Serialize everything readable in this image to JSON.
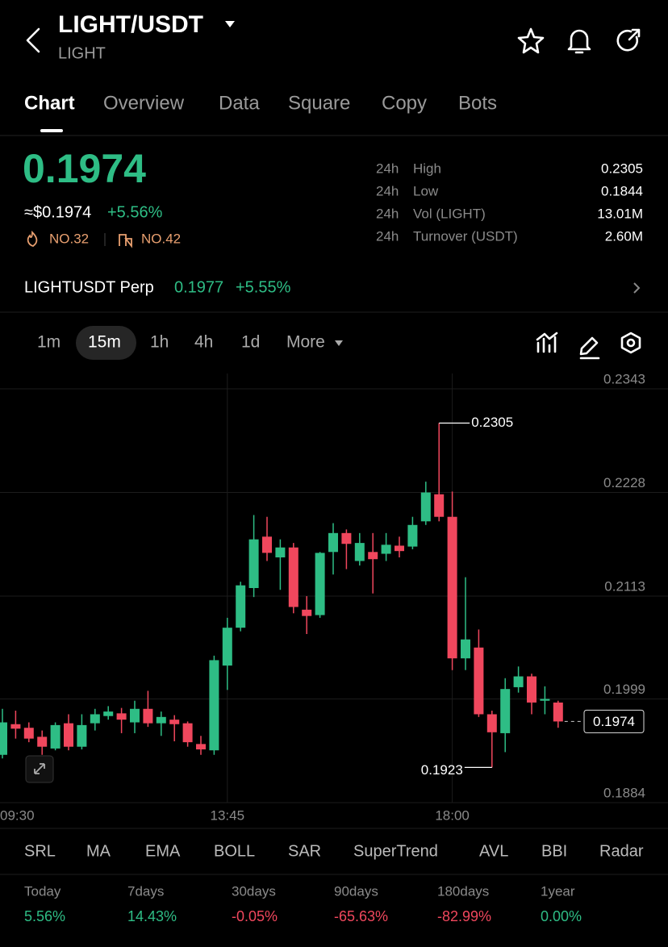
{
  "header": {
    "title": "LIGHT/USDT",
    "subtitle": "LIGHT"
  },
  "tabs": [
    "Chart",
    "Overview",
    "Data",
    "Square",
    "Copy",
    "Bots"
  ],
  "price": {
    "last": "0.1974",
    "usd": "≈$0.1974",
    "change": "+5.56%",
    "rank_hot": "NO.32",
    "rank_sector": "NO.42"
  },
  "stats": [
    [
      "24h",
      "High",
      "0.2305"
    ],
    [
      "24h",
      "Low",
      "0.1844"
    ],
    [
      "24h",
      "Vol (LIGHT)",
      "13.01M"
    ],
    [
      "24h",
      "Turnover (USDT)",
      "2.60M"
    ]
  ],
  "perp": {
    "name": "LIGHTUSDT Perp",
    "price": "0.1977",
    "change": "+5.55%"
  },
  "intervals": [
    "1m",
    "15m",
    "1h",
    "4h",
    "1d",
    "More"
  ],
  "chart_data": {
    "type": "candlestick",
    "categories": [
      "09:30",
      null,
      null,
      null,
      null,
      null,
      null,
      null,
      null,
      null,
      null,
      null,
      null,
      null,
      null,
      null,
      null,
      "13:45",
      null,
      null,
      null,
      null,
      null,
      null,
      null,
      null,
      null,
      null,
      null,
      null,
      null,
      null,
      null,
      null,
      "18:00",
      null,
      null,
      null,
      null,
      null,
      null,
      null,
      null
    ],
    "open": [
      0.1937,
      0.1971,
      0.1967,
      0.1957,
      0.1944,
      0.1972,
      0.1946,
      0.1972,
      0.198,
      0.1983,
      0.1973,
      0.1988,
      0.1972,
      0.1976,
      0.1972,
      0.1949,
      0.1942,
      0.2036,
      0.2078,
      0.2122,
      0.2179,
      0.2156,
      0.2167,
      0.2098,
      0.2092,
      0.2162,
      0.2183,
      0.2152,
      0.2162,
      0.216,
      0.2169,
      0.2168,
      0.2196,
      0.2226,
      0.2201,
      0.2044,
      0.2056,
      0.1982,
      0.1961,
      0.2012,
      0.2024,
      0.1997,
      0.1995
    ],
    "high": [
      0.1988,
      0.1986,
      0.1973,
      0.1964,
      0.1973,
      0.1982,
      0.1982,
      0.1988,
      0.1991,
      0.1989,
      0.1997,
      0.2008,
      0.1985,
      0.1981,
      0.1974,
      0.1958,
      0.2047,
      0.2089,
      0.2129,
      0.2203,
      0.2201,
      0.2176,
      0.2172,
      0.2113,
      0.2162,
      0.2194,
      0.2187,
      0.2183,
      0.2183,
      0.2183,
      0.2179,
      0.2201,
      0.224,
      0.2305,
      0.2229,
      0.2134,
      0.2076,
      0.1986,
      0.2022,
      0.2035,
      0.2027,
      0.2013,
      0.1997
    ],
    "low": [
      0.1933,
      0.1955,
      0.1951,
      0.1937,
      0.1942,
      0.1942,
      0.1943,
      0.1964,
      0.1976,
      0.1961,
      0.1961,
      0.1968,
      0.1958,
      0.1952,
      0.1946,
      0.1937,
      0.1937,
      0.2009,
      0.2074,
      0.2112,
      0.2152,
      0.212,
      0.2094,
      0.2071,
      0.2089,
      0.2137,
      0.2143,
      0.2147,
      0.2116,
      0.2152,
      0.2156,
      0.2165,
      0.2192,
      0.2196,
      0.2031,
      0.2031,
      0.1979,
      0.1923,
      0.194,
      0.2006,
      0.1982,
      0.1982,
      0.1967
    ],
    "close": [
      0.1973,
      0.1966,
      0.1955,
      0.1946,
      0.197,
      0.1946,
      0.197,
      0.1982,
      0.1985,
      0.1976,
      0.1988,
      0.1972,
      0.1979,
      0.1971,
      0.1951,
      0.1943,
      0.2042,
      0.2078,
      0.2125,
      0.2176,
      0.2161,
      0.2167,
      0.2101,
      0.2091,
      0.2161,
      0.2183,
      0.2171,
      0.2172,
      0.2154,
      0.217,
      0.2163,
      0.2192,
      0.2228,
      0.2201,
      0.2044,
      0.2065,
      0.1982,
      0.1962,
      0.201,
      0.2024,
      0.1995,
      0.1999,
      0.1974
    ],
    "ylim": [
      0.1884,
      0.236
    ],
    "yticks": [
      0.1884,
      0.1999,
      0.2113,
      0.2228,
      0.2343
    ],
    "grid": true,
    "up_color": "#2ebd85",
    "down_color": "#f0475d"
  },
  "indicators": [
    "SRL",
    "MA",
    "EMA",
    "BOLL",
    "SAR",
    "SuperTrend",
    "AVL",
    "BBI",
    "Radar"
  ],
  "periods": [
    {
      "label": "Today",
      "value": "5.56%"
    },
    {
      "label": "7days",
      "value": "14.43%"
    },
    {
      "label": "30days",
      "value": "-0.05%"
    },
    {
      "label": "90days",
      "value": "-65.63%"
    },
    {
      "label": "180days",
      "value": "-82.99%"
    },
    {
      "label": "1year",
      "value": "0.00%"
    }
  ]
}
